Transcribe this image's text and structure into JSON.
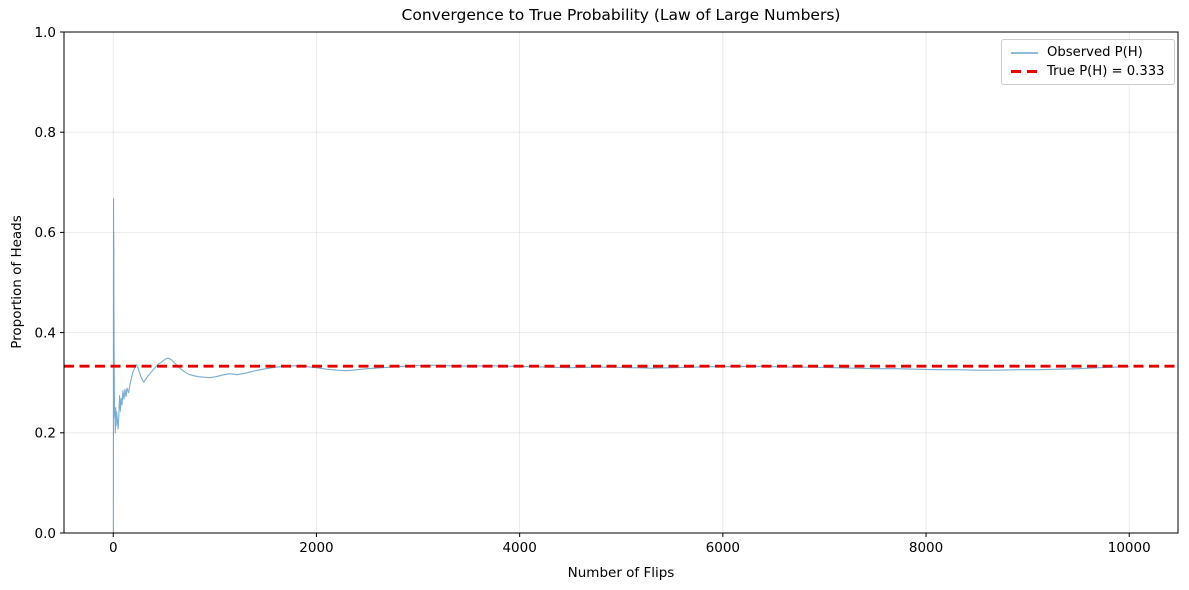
{
  "figure": {
    "background": "#ffffff"
  },
  "chart_data": {
    "type": "line",
    "title": "Convergence to True Probability (Law of Large Numbers)",
    "xlabel": "Number of Flips",
    "ylabel": "Proportion of Heads",
    "xlim": [
      -485,
      10480
    ],
    "ylim": [
      0.0,
      1.0
    ],
    "grid": true,
    "grid_color": "#b0b0b0",
    "grid_opacity": 0.3,
    "legend_position": "upper right",
    "xticks": [
      {
        "v": 0,
        "label": "0"
      },
      {
        "v": 2000,
        "label": "2000"
      },
      {
        "v": 4000,
        "label": "4000"
      },
      {
        "v": 6000,
        "label": "6000"
      },
      {
        "v": 8000,
        "label": "8000"
      },
      {
        "v": 10000,
        "label": "10000"
      }
    ],
    "yticks": [
      {
        "v": 0.0,
        "label": "0.0"
      },
      {
        "v": 0.2,
        "label": "0.2"
      },
      {
        "v": 0.4,
        "label": "0.4"
      },
      {
        "v": 0.6,
        "label": "0.6"
      },
      {
        "v": 0.8,
        "label": "0.8"
      },
      {
        "v": 1.0,
        "label": "1.0"
      }
    ],
    "series": [
      {
        "name": "Observed P(H)",
        "kind": "line",
        "color": "#1f77b4",
        "opacity": 0.6,
        "linewidth": 1.1,
        "points": [
          [
            1,
            0.0
          ],
          [
            2,
            0.5
          ],
          [
            3,
            0.667
          ],
          [
            4,
            0.5
          ],
          [
            5,
            0.6
          ],
          [
            6,
            0.5
          ],
          [
            8,
            0.375
          ],
          [
            10,
            0.3
          ],
          [
            13,
            0.231
          ],
          [
            16,
            0.25
          ],
          [
            20,
            0.2
          ],
          [
            24,
            0.25
          ],
          [
            28,
            0.214
          ],
          [
            33,
            0.242
          ],
          [
            40,
            0.225
          ],
          [
            48,
            0.208
          ],
          [
            55,
            0.236
          ],
          [
            62,
            0.274
          ],
          [
            70,
            0.243
          ],
          [
            78,
            0.269
          ],
          [
            86,
            0.256
          ],
          [
            95,
            0.284
          ],
          [
            105,
            0.267
          ],
          [
            115,
            0.287
          ],
          [
            125,
            0.272
          ],
          [
            135,
            0.289
          ],
          [
            150,
            0.28
          ],
          [
            165,
            0.297
          ],
          [
            180,
            0.311
          ],
          [
            195,
            0.322
          ],
          [
            210,
            0.329
          ],
          [
            225,
            0.336
          ],
          [
            240,
            0.332
          ],
          [
            255,
            0.322
          ],
          [
            270,
            0.313
          ],
          [
            285,
            0.306
          ],
          [
            300,
            0.301
          ],
          [
            320,
            0.307
          ],
          [
            340,
            0.313
          ],
          [
            365,
            0.319
          ],
          [
            390,
            0.325
          ],
          [
            420,
            0.332
          ],
          [
            450,
            0.338
          ],
          [
            480,
            0.342
          ],
          [
            510,
            0.347
          ],
          [
            540,
            0.349
          ],
          [
            570,
            0.346
          ],
          [
            600,
            0.34
          ],
          [
            630,
            0.334
          ],
          [
            660,
            0.328
          ],
          [
            700,
            0.322
          ],
          [
            740,
            0.317
          ],
          [
            790,
            0.314
          ],
          [
            840,
            0.312
          ],
          [
            890,
            0.311
          ],
          [
            950,
            0.31
          ],
          [
            1010,
            0.312
          ],
          [
            1070,
            0.315
          ],
          [
            1140,
            0.318
          ],
          [
            1220,
            0.316
          ],
          [
            1300,
            0.319
          ],
          [
            1400,
            0.324
          ],
          [
            1500,
            0.328
          ],
          [
            1600,
            0.331
          ],
          [
            1700,
            0.333
          ],
          [
            1800,
            0.334
          ],
          [
            1900,
            0.332
          ],
          [
            2000,
            0.33
          ],
          [
            2100,
            0.327
          ],
          [
            2200,
            0.325
          ],
          [
            2300,
            0.324
          ],
          [
            2400,
            0.326
          ],
          [
            2500,
            0.328
          ],
          [
            2650,
            0.33
          ],
          [
            2800,
            0.332
          ],
          [
            2950,
            0.334
          ],
          [
            3100,
            0.335
          ],
          [
            3300,
            0.334
          ],
          [
            3500,
            0.333
          ],
          [
            3700,
            0.334
          ],
          [
            3900,
            0.333
          ],
          [
            4100,
            0.332
          ],
          [
            4300,
            0.331
          ],
          [
            4500,
            0.33
          ],
          [
            4700,
            0.331
          ],
          [
            4900,
            0.331
          ],
          [
            5100,
            0.33
          ],
          [
            5300,
            0.329
          ],
          [
            5500,
            0.33
          ],
          [
            5700,
            0.331
          ],
          [
            5900,
            0.332
          ],
          [
            6100,
            0.332
          ],
          [
            6300,
            0.333
          ],
          [
            6500,
            0.332
          ],
          [
            6700,
            0.331
          ],
          [
            6900,
            0.331
          ],
          [
            7100,
            0.33
          ],
          [
            7300,
            0.329
          ],
          [
            7500,
            0.328
          ],
          [
            7700,
            0.328
          ],
          [
            7900,
            0.327
          ],
          [
            8100,
            0.326
          ],
          [
            8300,
            0.326
          ],
          [
            8500,
            0.325
          ],
          [
            8700,
            0.325
          ],
          [
            8900,
            0.326
          ],
          [
            9100,
            0.326
          ],
          [
            9300,
            0.327
          ],
          [
            9500,
            0.328
          ],
          [
            9700,
            0.33
          ],
          [
            9850,
            0.331
          ],
          [
            10000,
            0.332
          ]
        ]
      },
      {
        "name": "True P(H) = 0.333",
        "kind": "hline",
        "y": 0.333,
        "color": "#e50000",
        "linewidth": 2.8,
        "dash": [
          10,
          5.5
        ]
      }
    ]
  }
}
